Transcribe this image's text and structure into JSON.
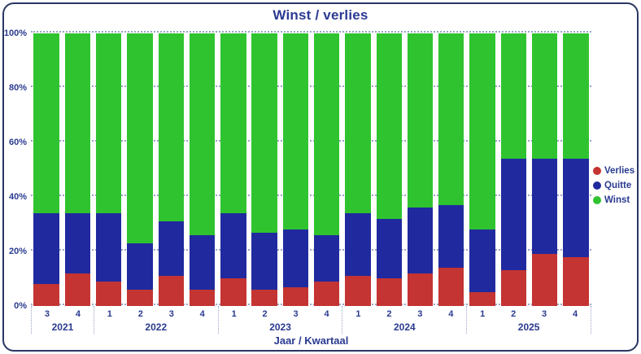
{
  "window": {
    "title": "Winst / verlies"
  },
  "chart_data": {
    "type": "bar",
    "subtype": "100%-stacked-column",
    "title": "Winst / verlies",
    "xlabel": "Jaar / Kwartaal",
    "ylabel": "",
    "ylim": [
      0,
      100
    ],
    "grid": "dotted-horizontal",
    "yticks": [
      "0%",
      "20%",
      "40%",
      "60%",
      "80%",
      "100%"
    ],
    "groups": [
      {
        "year": "2021",
        "quarters": [
          "3",
          "4"
        ]
      },
      {
        "year": "2022",
        "quarters": [
          "1",
          "2",
          "3",
          "4"
        ]
      },
      {
        "year": "2023",
        "quarters": [
          "1",
          "2",
          "3",
          "4"
        ]
      },
      {
        "year": "2024",
        "quarters": [
          "1",
          "2",
          "3",
          "4"
        ]
      },
      {
        "year": "2025",
        "quarters": [
          "1",
          "2",
          "3",
          "4"
        ]
      }
    ],
    "categories": [
      "2021-3",
      "2021-4",
      "2022-1",
      "2022-2",
      "2022-3",
      "2022-4",
      "2023-1",
      "2023-2",
      "2023-3",
      "2023-4",
      "2024-1",
      "2024-2",
      "2024-3",
      "2024-4",
      "2025-1",
      "2025-2",
      "2025-3",
      "2025-4"
    ],
    "series": [
      {
        "name": "Verlies",
        "color": "#c43432",
        "values": [
          8,
          12,
          9,
          6,
          11,
          6,
          10,
          6,
          7,
          9,
          11,
          10,
          12,
          14,
          5,
          13,
          19,
          18
        ]
      },
      {
        "name": "Quitte",
        "color": "#202a9e",
        "values": [
          26,
          22,
          25,
          17,
          20,
          20,
          24,
          21,
          21,
          17,
          23,
          22,
          24,
          23,
          23,
          41,
          35,
          36
        ]
      },
      {
        "name": "Winst",
        "color": "#2fc42f",
        "values": [
          66,
          66,
          66,
          77,
          69,
          74,
          66,
          73,
          72,
          74,
          66,
          68,
          64,
          63,
          72,
          46,
          46,
          46
        ]
      }
    ],
    "legend": {
      "position": "right",
      "entries": [
        "Verlies",
        "Quitte",
        "Winst"
      ]
    }
  }
}
